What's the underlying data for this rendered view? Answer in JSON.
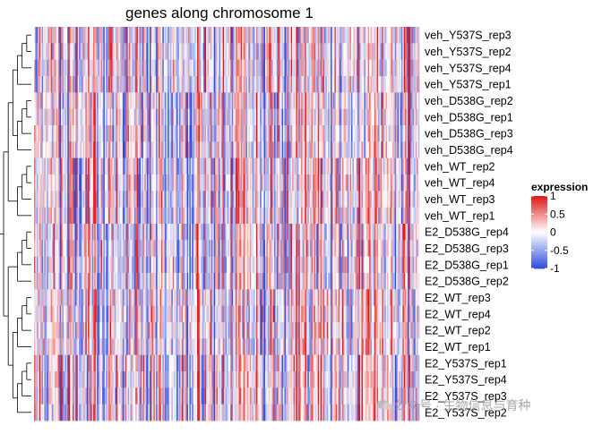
{
  "chart_data": {
    "type": "heatmap",
    "title": "genes along chromosome 1",
    "rows": [
      "veh_Y537S_rep3",
      "veh_Y537S_rep2",
      "veh_Y537S_rep4",
      "veh_Y537S_rep1",
      "veh_D538G_rep2",
      "veh_D538G_rep1",
      "veh_D538G_rep3",
      "veh_D538G_rep4",
      "veh_WT_rep2",
      "veh_WT_rep4",
      "veh_WT_rep3",
      "veh_WT_rep1",
      "E2_D538G_rep4",
      "E2_D538G_rep3",
      "E2_D538G_rep1",
      "E2_D538G_rep2",
      "E2_WT_rep3",
      "E2_WT_rep4",
      "E2_WT_rep2",
      "E2_WT_rep1",
      "E2_Y537S_rep1",
      "E2_Y537S_rep4",
      "E2_Y537S_rep3",
      "E2_Y537S_rep2"
    ],
    "n_columns": 300,
    "x_axis": "genes ordered along chromosome 1 (columns not labeled)",
    "value_range": [
      -1,
      1
    ],
    "colorscale": {
      "low": "#2f4ce0",
      "mid": "#ffffff",
      "high": "#e01616"
    },
    "legend": {
      "title": "expression",
      "ticks": [
        1,
        0.5,
        0,
        -0.5,
        -1
      ],
      "tick_labels": [
        "1",
        "0.5",
        "0",
        "-0.5",
        "-1"
      ],
      "position": "right"
    },
    "row_dendrogram": "hierarchical clustering on left side"
  },
  "watermark": {
    "text": "公众号 · 生物信息与育种"
  }
}
